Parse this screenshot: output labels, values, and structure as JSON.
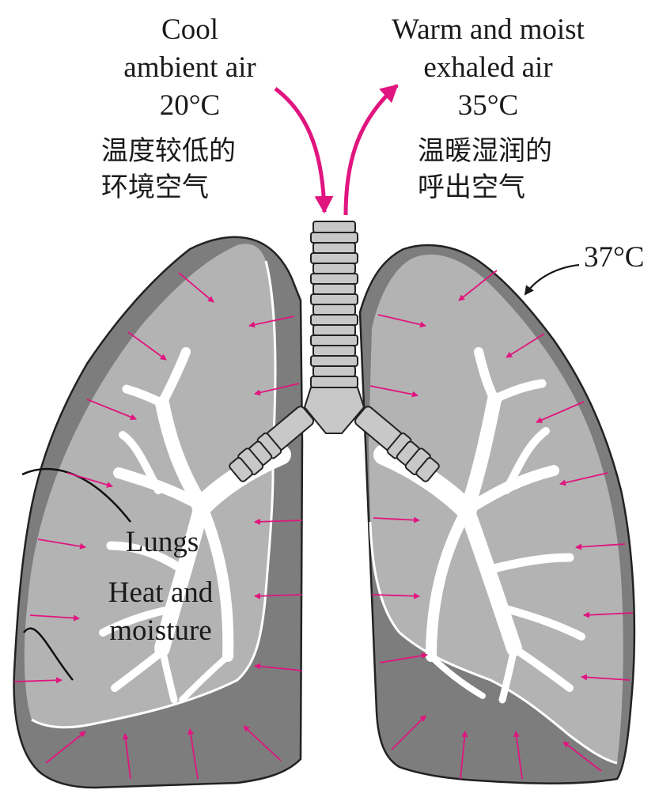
{
  "labels": {
    "cool_air": [
      "Cool",
      "ambient air",
      "20°C"
    ],
    "cool_air_cn": [
      "温度较低的",
      "环境空气"
    ],
    "warm_air": [
      "Warm and moist",
      "exhaled air",
      "35°C"
    ],
    "warm_air_cn": [
      "温暖湿润的",
      "呼出空气"
    ],
    "lung_temp": "37°C",
    "lungs": "Lungs",
    "heat_moisture": [
      "Heat and",
      "moisture"
    ]
  },
  "colors": {
    "arrow": "#e0157f",
    "lung_outer": "#7d7d7d",
    "lung_inner": "#b3b3b3",
    "airway": "#ffffff",
    "trachea": "#c8c8c8"
  }
}
